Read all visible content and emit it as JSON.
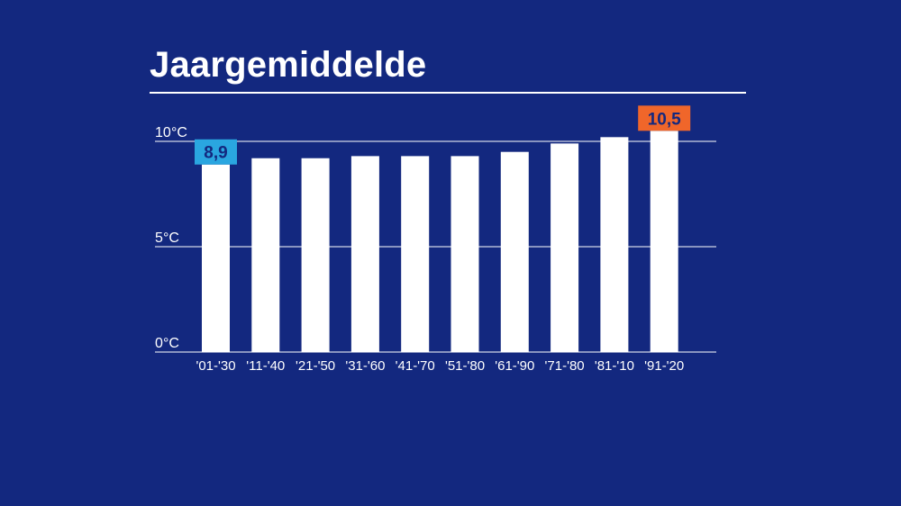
{
  "title": "Jaargemiddelde",
  "colors": {
    "background": "#13287f",
    "bar": "#ffffff",
    "first_callout_bg": "#2aa6e0",
    "first_callout_text": "#13287f",
    "last_callout_bg": "#f0662a",
    "last_callout_text": "#13287f"
  },
  "chart_data": {
    "type": "bar",
    "title": "Jaargemiddelde",
    "xlabel": "",
    "ylabel": "",
    "categories": [
      "'01-'30",
      "'11-'40",
      "'21-'50",
      "'31-'60",
      "'41-'70",
      "'51-'80",
      "'61-'90",
      "'71-'80",
      "'81-'10",
      "'91-'20"
    ],
    "values": [
      8.9,
      9.2,
      9.2,
      9.3,
      9.3,
      9.3,
      9.5,
      9.9,
      10.2,
      10.5
    ],
    "ylim": [
      0,
      10.5
    ],
    "yticks": [
      {
        "value": 0,
        "label": "0",
        "unit": "°C"
      },
      {
        "value": 5,
        "label": "5",
        "unit": "°C"
      },
      {
        "value": 10,
        "label": "10",
        "unit": "°C"
      }
    ],
    "grid": true,
    "annotations": [
      {
        "category_index": 0,
        "text": "8,9",
        "style": "first"
      },
      {
        "category_index": 9,
        "text": "10,5",
        "style": "last"
      }
    ]
  }
}
